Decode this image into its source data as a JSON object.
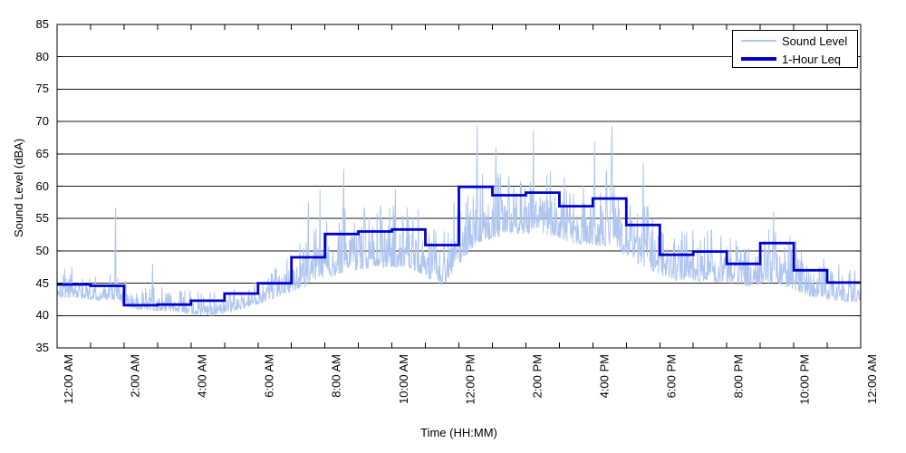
{
  "figure": {
    "background": "#ffffff",
    "border_color": "#000000"
  },
  "chart_data": {
    "type": "line",
    "title": "",
    "xlabel": "Time (HH:MM)",
    "ylabel": "Sound Level (dBA)",
    "ylim": [
      35,
      85
    ],
    "yticks": [
      35,
      40,
      45,
      50,
      55,
      60,
      65,
      70,
      75,
      80,
      85
    ],
    "x_hours_range": [
      0,
      24
    ],
    "xtick_every_hours": 2,
    "minor_xtick_every_hours": 1,
    "xtick_labels": [
      "12:00 AM",
      "2:00 AM",
      "4:00 AM",
      "6:00 AM",
      "8:00 AM",
      "10:00 AM",
      "12:00 PM",
      "2:00 PM",
      "4:00 PM",
      "6:00 PM",
      "8:00 PM",
      "10:00 PM",
      "12:00 AM"
    ],
    "grid": "horizontal-only",
    "grid_color": "#1a1a1a",
    "legend": {
      "position": "top-right",
      "entries": [
        {
          "label": "Sound Level",
          "color": "#AEC5F0",
          "line_width": 2
        },
        {
          "label": "1-Hour Leq",
          "color": "#0000CC",
          "line_width": 4
        }
      ]
    },
    "series": [
      {
        "name": "Sound Level",
        "type": "noisy-line",
        "color": "#AEC5F0",
        "stroke_width": 1,
        "samples_per_hour": 75,
        "seed": 1337,
        "envelope_by_hour": {
          "lo": [
            42.4,
            42.0,
            40.6,
            40.4,
            39.6,
            40.6,
            42.4,
            44.0,
            46.0,
            46.8,
            46.8,
            43.8,
            50.4,
            52.0,
            52.0,
            50.4,
            50.0,
            46.8,
            44.8,
            44.8,
            44.0,
            44.4,
            42.4,
            41.8
          ],
          "hi": [
            47.6,
            46.6,
            44.6,
            44.4,
            43.6,
            44.6,
            47.2,
            52.6,
            56.6,
            57.0,
            57.6,
            54.6,
            63.0,
            62.0,
            63.0,
            61.0,
            63.0,
            58.0,
            53.0,
            53.6,
            52.0,
            54.6,
            50.0,
            47.6
          ]
        },
        "notable_spikes": [
          {
            "hour": 1.74,
            "value": 56.7
          },
          {
            "hour": 2.85,
            "value": 48.0
          },
          {
            "hour": 7.5,
            "value": 57.5
          },
          {
            "hour": 7.85,
            "value": 59.5
          },
          {
            "hour": 8.56,
            "value": 62.7
          },
          {
            "hour": 10.1,
            "value": 59.5
          },
          {
            "hour": 12.55,
            "value": 69.5
          },
          {
            "hour": 13.1,
            "value": 66.0
          },
          {
            "hour": 14.23,
            "value": 68.6
          },
          {
            "hour": 16.05,
            "value": 66.9
          },
          {
            "hour": 16.57,
            "value": 69.3
          },
          {
            "hour": 17.5,
            "value": 63.6
          },
          {
            "hour": 21.4,
            "value": 56.0
          }
        ]
      },
      {
        "name": "1-Hour Leq",
        "type": "hourly-step",
        "color": "#0000CC",
        "stroke_width": 2.8,
        "hourly_values": [
          44.8,
          44.6,
          41.6,
          41.7,
          42.3,
          43.4,
          45.0,
          49.0,
          52.6,
          53.0,
          53.3,
          50.9,
          59.9,
          58.6,
          59.0,
          56.9,
          58.1,
          54.0,
          49.4,
          49.9,
          48.0,
          51.2,
          47.0,
          45.1
        ]
      }
    ]
  }
}
